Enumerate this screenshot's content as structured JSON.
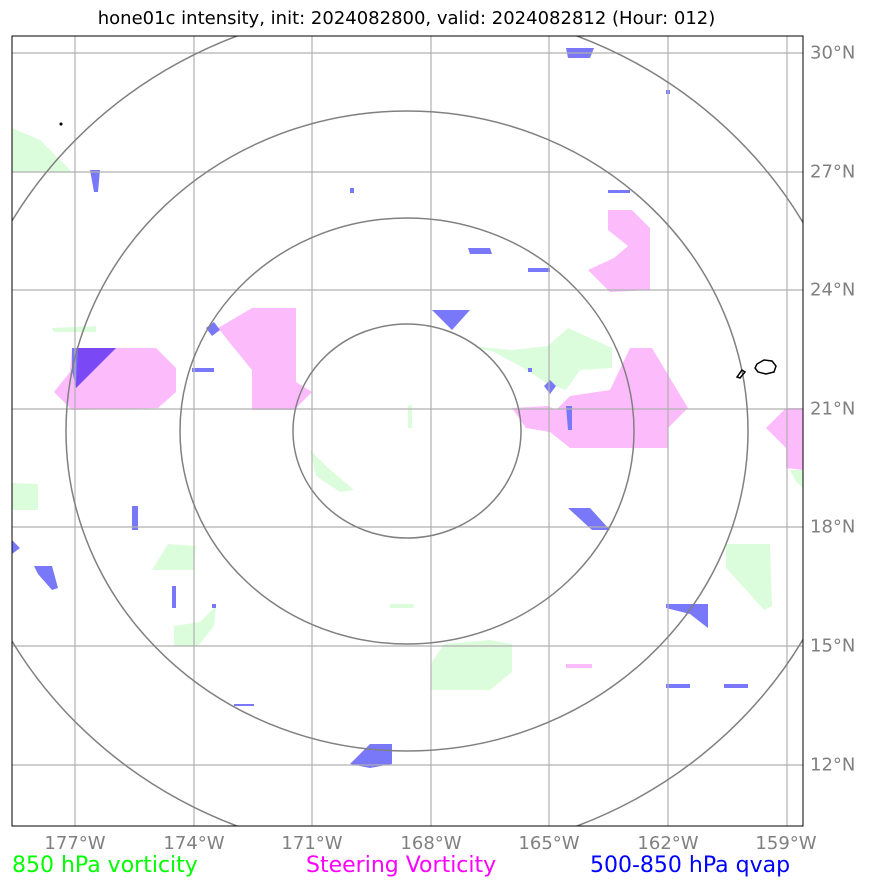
{
  "title": "hone01c intensity, init: 2024082800, valid: 2024082812 (Hour: 012)",
  "latitude_labels": [
    "30°N",
    "27°N",
    "24°N",
    "21°N",
    "18°N",
    "15°N",
    "12°N"
  ],
  "longitude_labels": [
    "177°W",
    "174°W",
    "171°W",
    "168°W",
    "165°W",
    "162°W",
    "159°W"
  ],
  "legend": [
    {
      "label": "850 hPa vorticity",
      "color": "#00ff00"
    },
    {
      "label": "Steering Vorticity",
      "color": "#ff00ff"
    },
    {
      "label": "500-850 hPa qvap",
      "color": "#0000ff"
    }
  ],
  "colors": {
    "vorticity_850_fill": "#dcfddc",
    "steering_vorticity_fill": "#fcbcfc",
    "qvap_fill": "#7878f8",
    "qvap_overlap_fill": "#7a48f4",
    "gridline": "#b0b0b0",
    "range_ring": "#808080",
    "coastline": "#000000"
  }
}
